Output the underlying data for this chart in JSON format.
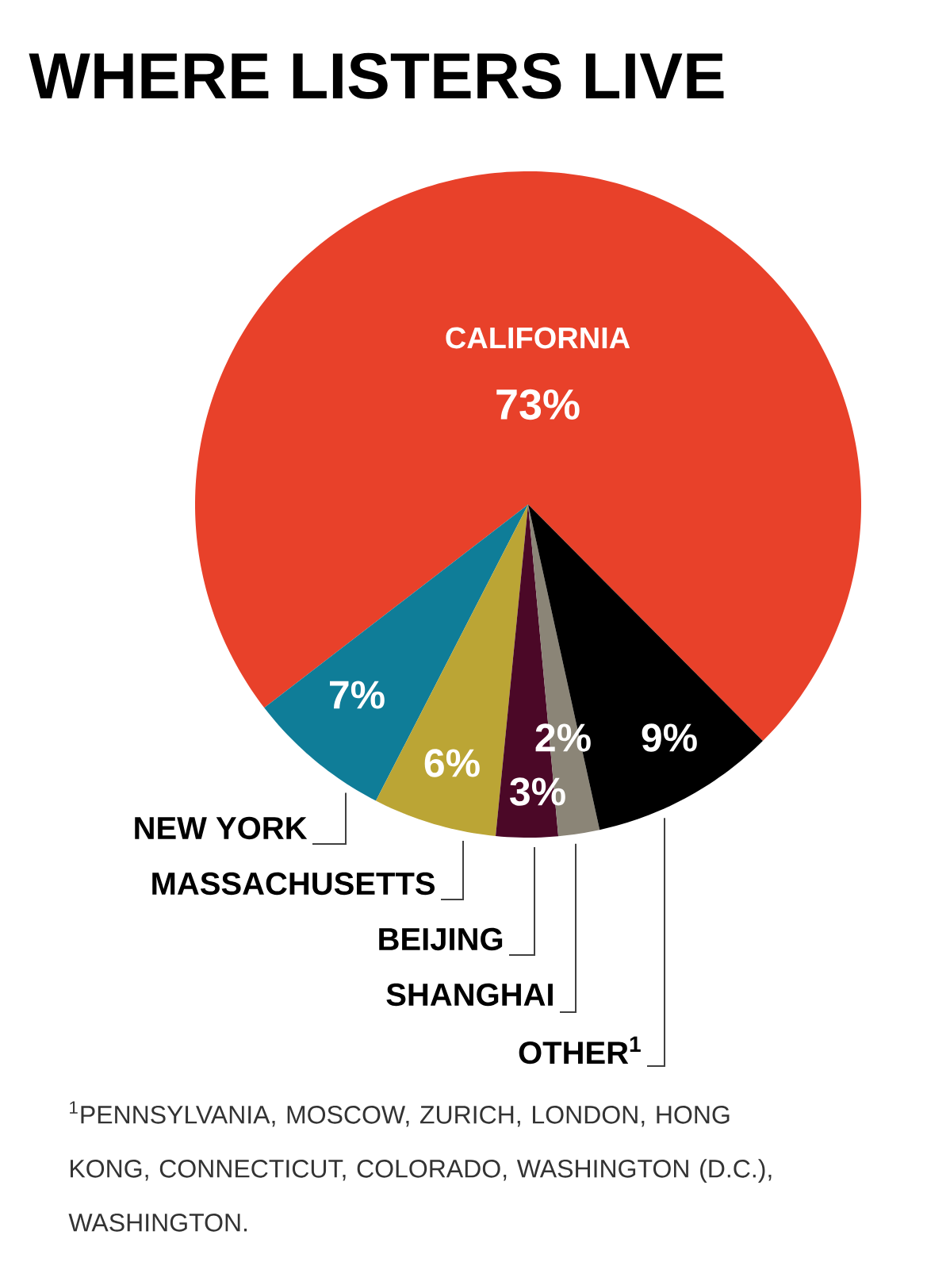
{
  "chart_data": {
    "type": "pie",
    "title": "WHERE LISTERS LIVE",
    "categories": [
      "CALIFORNIA",
      "NEW YORK",
      "MASSACHUSETTS",
      "BEIJING",
      "SHANGHAI",
      "OTHER$^{1}$"
    ],
    "values": [
      73,
      7,
      6,
      3,
      2,
      9
    ],
    "colors": [
      "#e8412a",
      "#0f7d98",
      "#bba535",
      "#4b0827",
      "#8b8577",
      "#000000"
    ],
    "value_labels": [
      "73%",
      "7%",
      "6%",
      "3%",
      "2%",
      "9%"
    ],
    "annotations": [
      "$^{1}$PENNSYLVANIA, MOSCOW, ZURICH, LONDON, HONG KONG, CONNECTICUT, COLORADO, WASHINGTON (D.C.), WASHINGTON."
    ]
  }
}
